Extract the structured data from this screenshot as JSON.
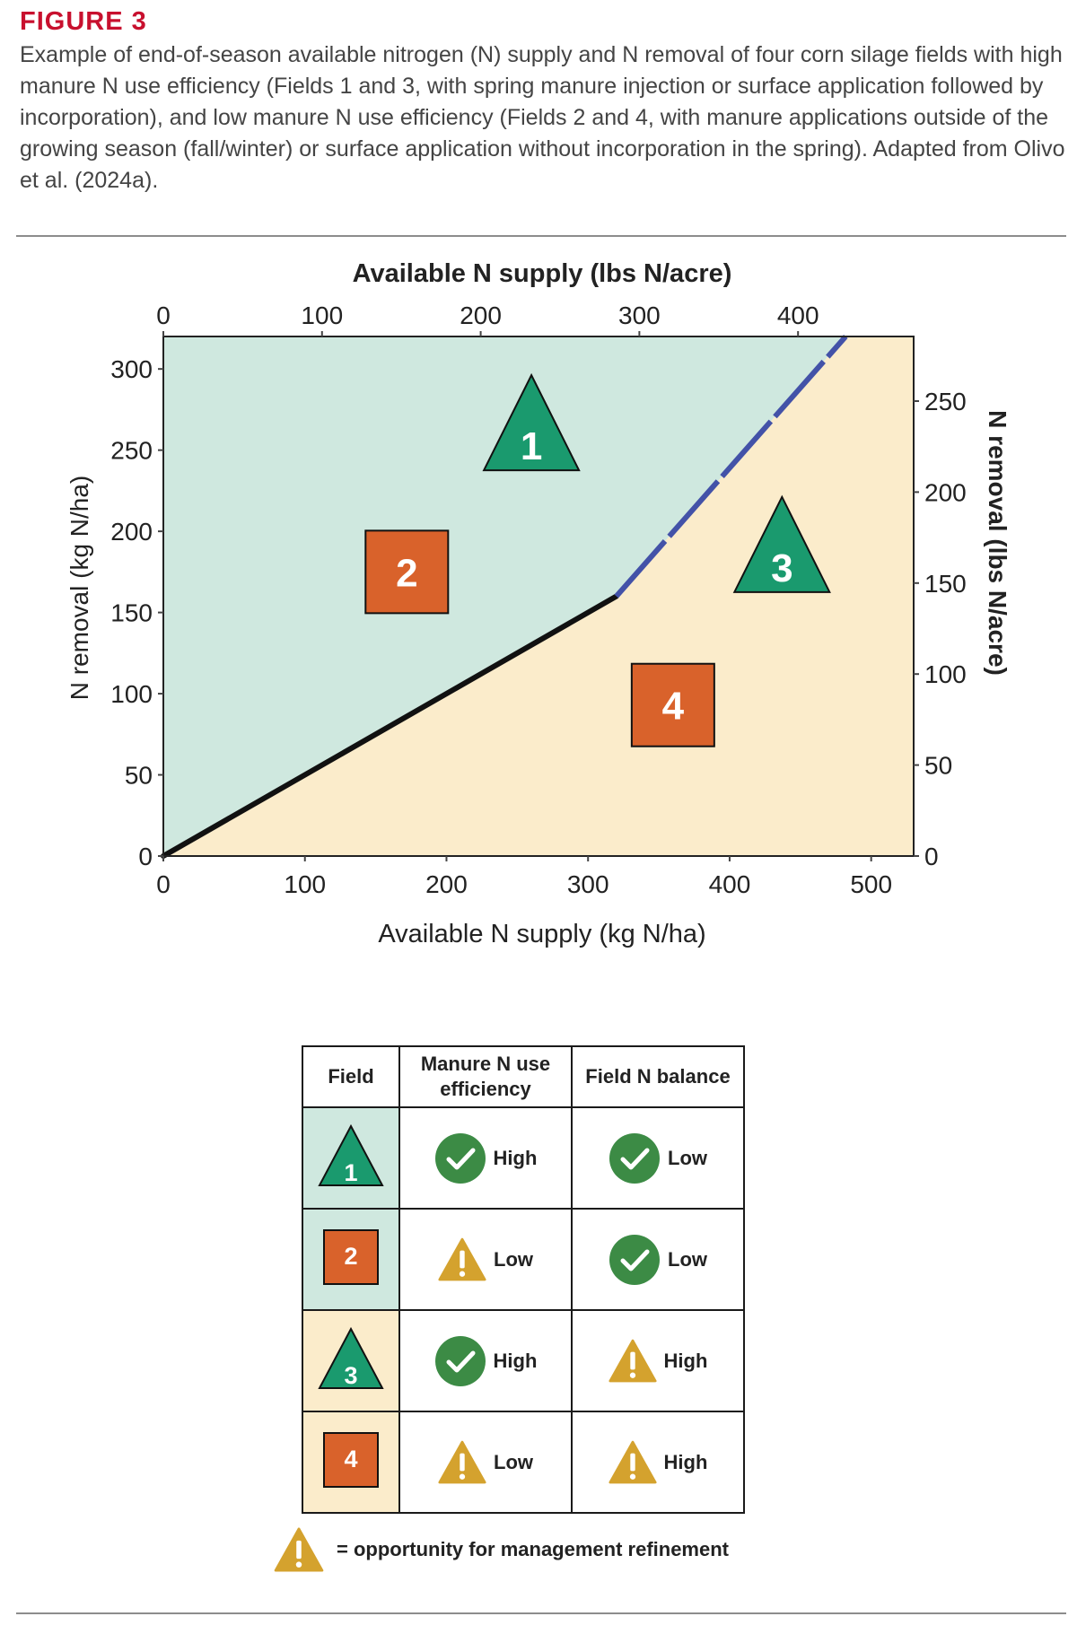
{
  "figure_label": "FIGURE 3",
  "caption": "Example of end-of-season available nitrogen (N) supply and N removal of four corn silage fields with high manure N use efficiency (Fields 1 and 3, with spring manure injection or surface application followed by incorporation), and low manure N use efficiency (Fields 2 and 4, with manure applications outside of the growing season (fall/winter) or surface application without incorporation in the spring). Adapted from Olivo et al. (2024a).",
  "colors": {
    "upper_region": "#cfe8df",
    "lower_region": "#fbeccb",
    "black_line": "#111111",
    "blue_line": "#4352a8",
    "triangle": "#1a9a6e",
    "square": "#d9622b",
    "check": "#3c8b45",
    "warning": "#d4a22e",
    "title_red": "#c8102e"
  },
  "chart_data": {
    "type": "scatter",
    "xlabel": "Available N supply (kg N/ha)",
    "ylabel": "N removal (kg N/ha)",
    "x2label": "Available N supply (lbs N/acre)",
    "y2label": "N removal (lbs N/acre)",
    "xlim": [
      0,
      530
    ],
    "ylim": [
      0,
      320
    ],
    "x_ticks": [
      0,
      100,
      200,
      300,
      400,
      500
    ],
    "y_ticks": [
      0,
      50,
      100,
      150,
      200,
      250,
      300
    ],
    "x2_ticks": [
      0,
      100,
      200,
      300,
      400
    ],
    "y2_ticks": [
      0,
      50,
      100,
      150,
      200,
      250
    ],
    "lbs_per_kg_ha": 0.8922,
    "lines": [
      {
        "style": "solid",
        "color": "black_line",
        "points": [
          [
            0,
            0
          ],
          [
            320,
            160
          ]
        ]
      },
      {
        "style": "dashed",
        "color": "blue_line",
        "points": [
          [
            320,
            160
          ],
          [
            482,
            320
          ]
        ]
      }
    ],
    "points": [
      {
        "label": "1",
        "marker": "triangle",
        "x": 260,
        "y": 263
      },
      {
        "label": "2",
        "marker": "square",
        "x": 172,
        "y": 175
      },
      {
        "label": "3",
        "marker": "triangle",
        "x": 437,
        "y": 188
      },
      {
        "label": "4",
        "marker": "square",
        "x": 360,
        "y": 93
      }
    ]
  },
  "table": {
    "headers": [
      "Field",
      "Manure N use efficiency",
      "Field N balance"
    ],
    "rows": [
      {
        "field": "1",
        "marker": "triangle",
        "bg": "upper_region",
        "efficiency": {
          "icon": "check",
          "text": "High"
        },
        "balance": {
          "icon": "check",
          "text": "Low"
        }
      },
      {
        "field": "2",
        "marker": "square",
        "bg": "upper_region",
        "efficiency": {
          "icon": "warning",
          "text": "Low"
        },
        "balance": {
          "icon": "check",
          "text": "Low"
        }
      },
      {
        "field": "3",
        "marker": "triangle",
        "bg": "lower_region",
        "efficiency": {
          "icon": "check",
          "text": "High"
        },
        "balance": {
          "icon": "warning",
          "text": "High"
        }
      },
      {
        "field": "4",
        "marker": "square",
        "bg": "lower_region",
        "efficiency": {
          "icon": "warning",
          "text": "Low"
        },
        "balance": {
          "icon": "warning",
          "text": "High"
        }
      }
    ]
  },
  "legend_note": "= opportunity for management refinement"
}
